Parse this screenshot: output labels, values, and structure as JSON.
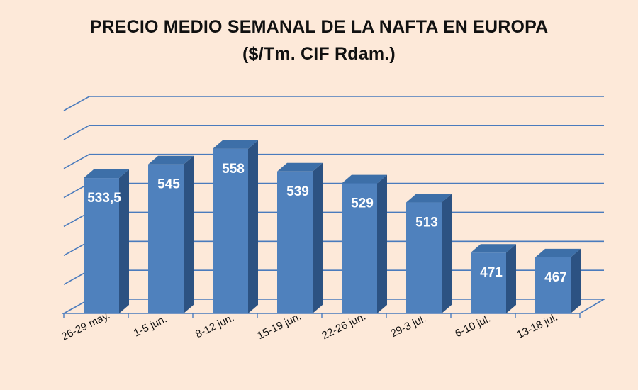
{
  "chart_data": {
    "type": "bar",
    "title": "PRECIO MEDIO SEMANAL DE LA NAFTA EN EUROPA",
    "subtitle": "($/Tm. CIF Rdam.)",
    "categories": [
      "26-29 may.",
      "1-5 jun.",
      "8-12 jun.",
      "15-19 jun.",
      "22-26 jun.",
      "29-3 jul.",
      "6-10 jul.",
      "13-18 jul."
    ],
    "values": [
      533.5,
      545,
      558,
      539,
      529,
      513,
      471,
      467
    ],
    "data_labels": [
      "533,5",
      "545",
      "558",
      "539",
      "529",
      "513",
      "471",
      "467"
    ],
    "ylim": [
      420,
      590
    ],
    "grid": true,
    "colors": {
      "bar_front": "#4f81bd",
      "bar_side": "#2c5282",
      "bar_top": "#3d6fa8",
      "grid": "#4a7bbd",
      "background": "#fde9d9"
    }
  }
}
